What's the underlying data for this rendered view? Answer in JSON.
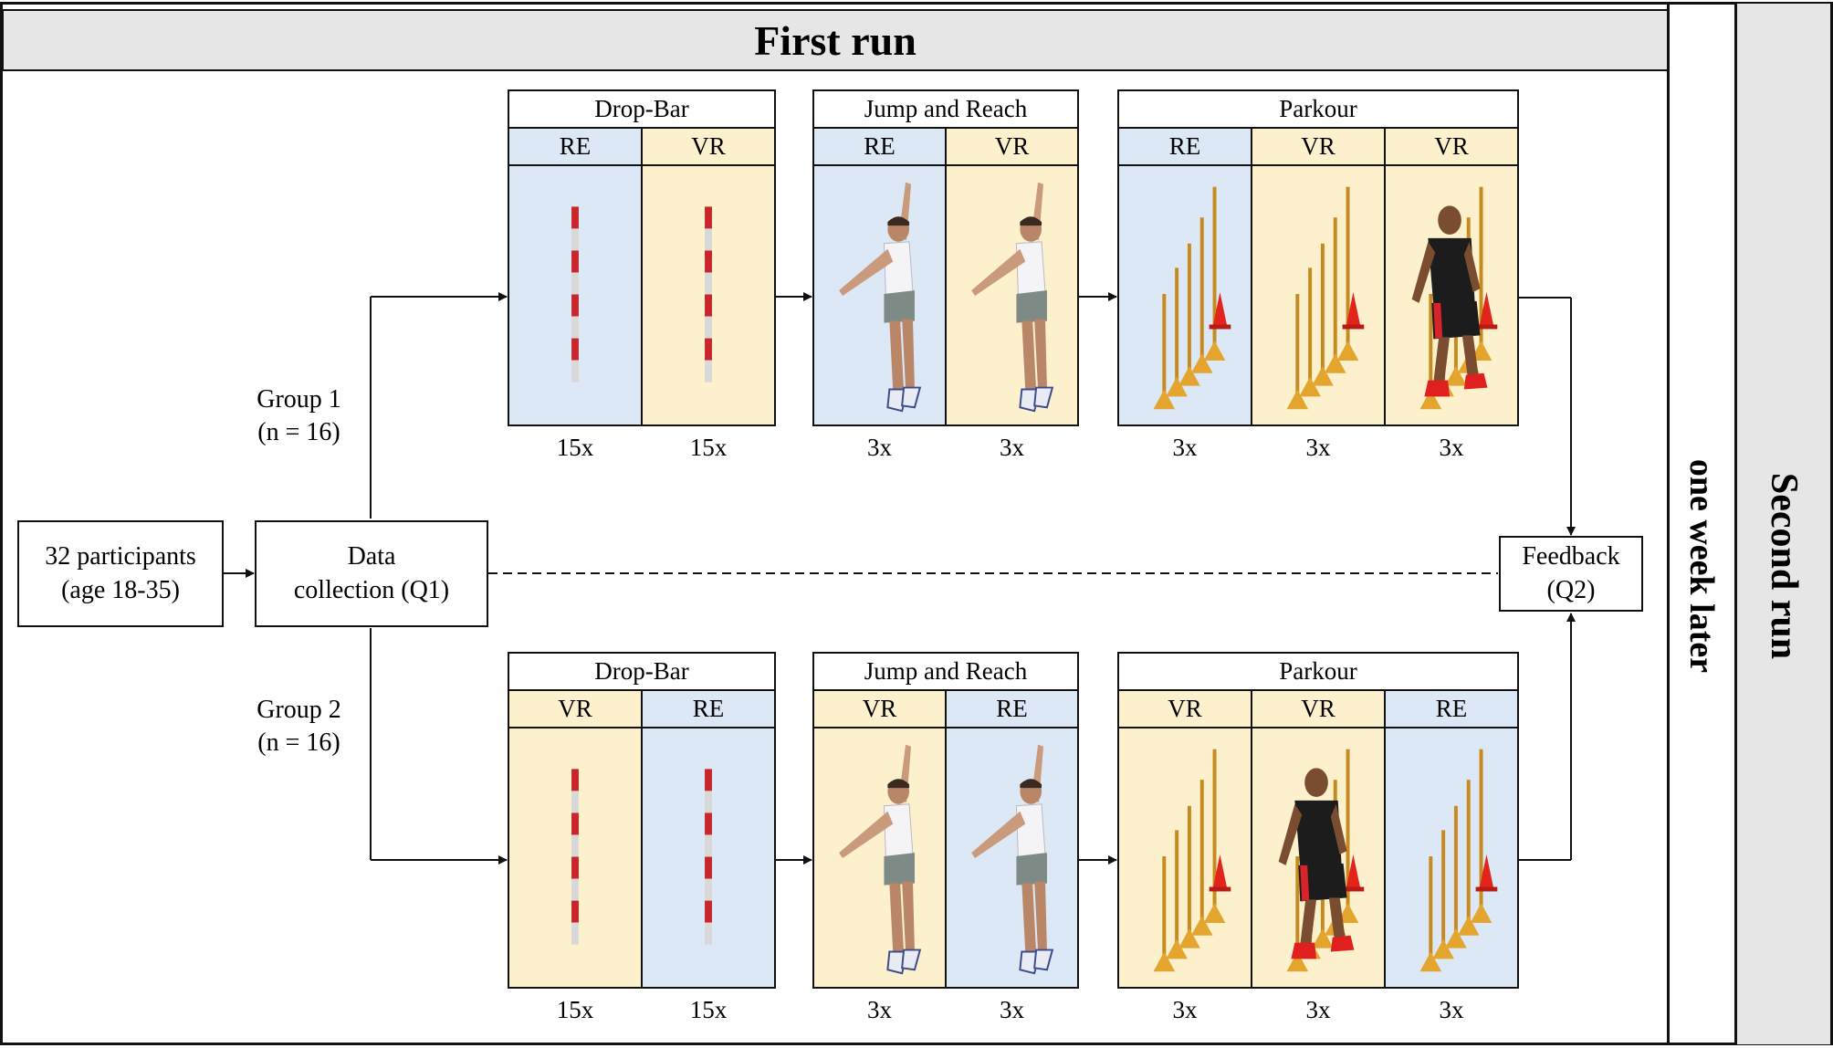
{
  "header": {
    "title": "First run"
  },
  "side": {
    "interval_label": "one week later",
    "second_run_label": "Second run"
  },
  "flow": {
    "participants_line1": "32 participants",
    "participants_line2": "(age 18-35)",
    "data_line1": "Data",
    "data_line2": "collection (Q1)",
    "feedback_line1": "Feedback",
    "feedback_line2": "(Q2)"
  },
  "groups": [
    {
      "label": "Group 1",
      "n": "(n = 16)"
    },
    {
      "label": "Group 2",
      "n": "(n = 16)"
    }
  ],
  "rows": [
    {
      "tasks": [
        {
          "title": "Drop-Bar",
          "conditions": [
            "RE",
            "VR"
          ],
          "counts": [
            "15x",
            "15x"
          ]
        },
        {
          "title": "Jump and Reach",
          "conditions": [
            "RE",
            "VR"
          ],
          "counts": [
            "3x",
            "3x"
          ]
        },
        {
          "title": "Parkour",
          "conditions": [
            "RE",
            "VR",
            "VR"
          ],
          "counts": [
            "3x",
            "3x",
            "3x"
          ]
        }
      ]
    },
    {
      "tasks": [
        {
          "title": "Drop-Bar",
          "conditions": [
            "VR",
            "RE"
          ],
          "counts": [
            "15x",
            "15x"
          ]
        },
        {
          "title": "Jump and Reach",
          "conditions": [
            "VR",
            "RE"
          ],
          "counts": [
            "3x",
            "3x"
          ]
        },
        {
          "title": "Parkour",
          "conditions": [
            "VR",
            "VR",
            "RE"
          ],
          "counts": [
            "3x",
            "3x",
            "3x"
          ]
        }
      ]
    }
  ],
  "colors": {
    "re": "#dce8f5",
    "vr": "#fdf0cd",
    "header": "#e6e6e6"
  }
}
